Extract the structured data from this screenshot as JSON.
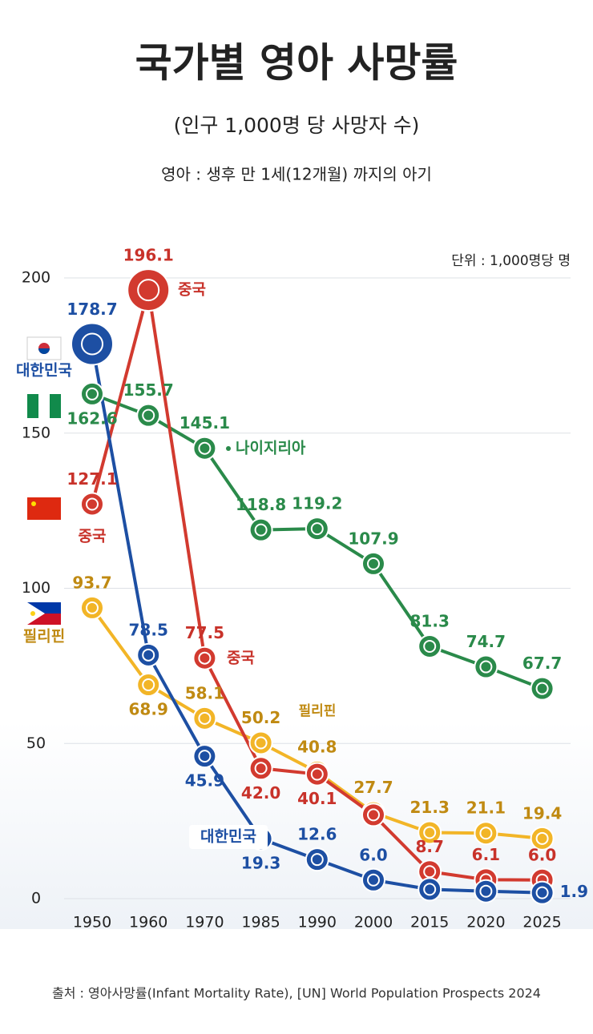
{
  "chart_data": {
    "type": "line",
    "title": "국가별 영아 사망률",
    "subtitle": "(인구 1,000명 당 사망자 수)",
    "note": "영아 : 생후 만 1세(12개월) 까지의 아기",
    "unit": "단위 : 1,000명당 명",
    "source": "출처 : 영아사망률(Infant Mortality Rate), [UN] World Population Prospects 2024",
    "categories": [
      "1950",
      "1960",
      "1970",
      "1985",
      "1990",
      "2000",
      "2015",
      "2020",
      "2025"
    ],
    "ylim": [
      0,
      200
    ],
    "yticks": [
      0,
      50,
      100,
      150,
      200
    ],
    "grid": true,
    "series": [
      {
        "name": "대한민국",
        "color": "#1d4fa3",
        "values": [
          178.7,
          78.5,
          45.9,
          19.3,
          12.6,
          6.0,
          3.0,
          2.4,
          1.9
        ],
        "value_labels": [
          "178.7",
          "78.5",
          "45.9",
          "19.3",
          "12.6",
          "6.0",
          null,
          null,
          "1.9"
        ]
      },
      {
        "name": "중국",
        "color": "#d23a2f",
        "values": [
          127.1,
          196.1,
          77.5,
          42.0,
          40.1,
          27.0,
          8.7,
          6.1,
          6.0
        ],
        "value_labels": [
          "127.1",
          "196.1",
          "77.5",
          "42.0",
          "40.1",
          null,
          "8.7",
          "6.1",
          "6.0"
        ]
      },
      {
        "name": "나이지리아",
        "color": "#2a8a4a",
        "values": [
          162.6,
          155.7,
          145.1,
          118.8,
          119.2,
          107.9,
          81.3,
          74.7,
          67.7
        ],
        "value_labels": [
          "162.6",
          "155.7",
          "145.1",
          "118.8",
          "119.2",
          "107.9",
          "81.3",
          "74.7",
          "67.7"
        ]
      },
      {
        "name": "필리핀",
        "color": "#f2b527",
        "values": [
          93.7,
          68.9,
          58.1,
          50.2,
          40.8,
          27.7,
          21.3,
          21.1,
          19.4
        ],
        "value_labels": [
          "93.7",
          "68.9",
          "58.1",
          "50.2",
          "40.8",
          "27.7",
          "21.3",
          "21.1",
          "19.4"
        ]
      }
    ]
  }
}
